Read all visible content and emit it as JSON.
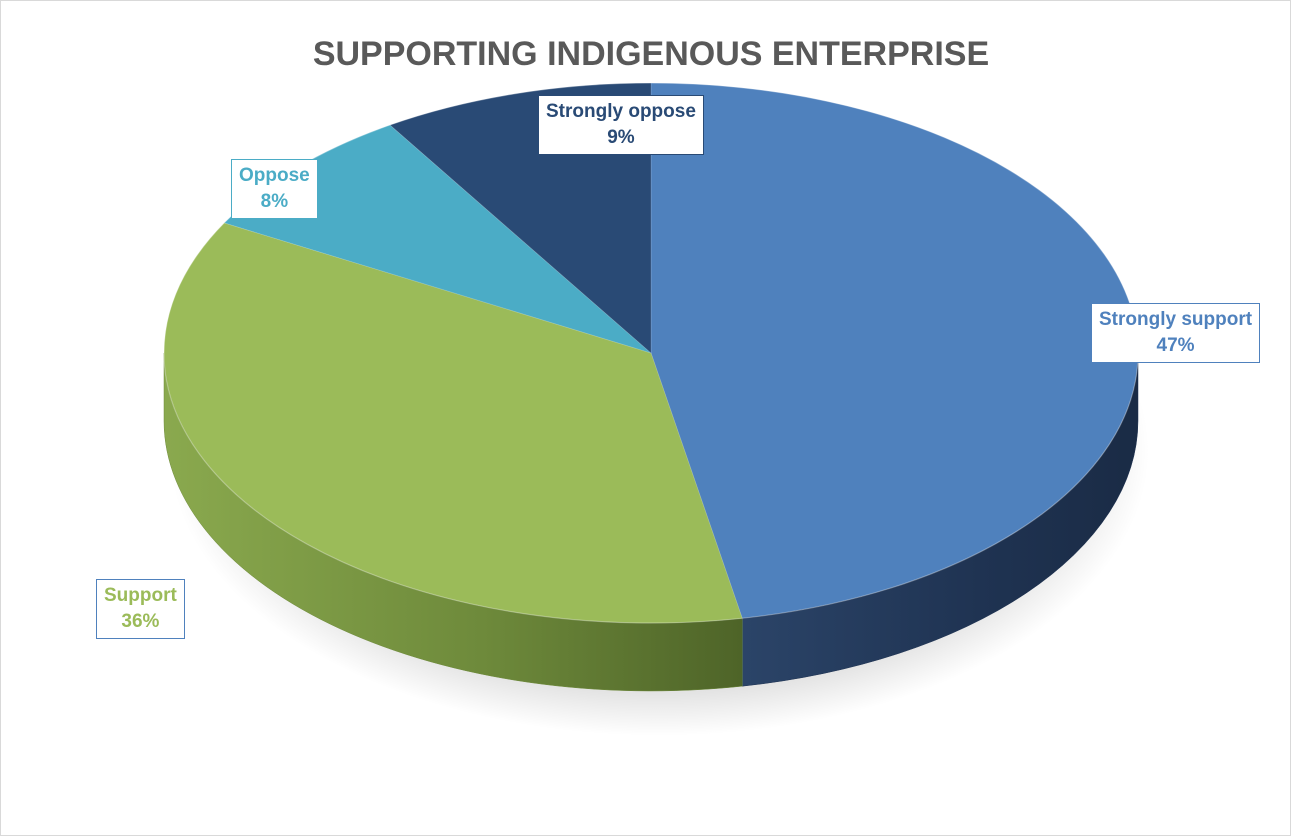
{
  "chart_data": {
    "type": "pie",
    "style": "3d",
    "title": "SUPPORTING INDIGENOUS ENTERPRISE",
    "legend": "none",
    "slices": [
      {
        "label": "Strongly support",
        "value": 47,
        "pct_label": "47%",
        "color": "#4f81bd",
        "side": "#1f3352"
      },
      {
        "label": "Support",
        "value": 36,
        "pct_label": "36%",
        "color": "#9bbb59",
        "side": "#6e8a3b"
      },
      {
        "label": "Oppose",
        "value": 8,
        "pct_label": "8%",
        "color": "#4bacc6",
        "side": "#2f7f95"
      },
      {
        "label": "Strongly oppose",
        "value": 9,
        "pct_label": "9%",
        "color": "#294a75",
        "side": "#1b3150"
      }
    ]
  }
}
